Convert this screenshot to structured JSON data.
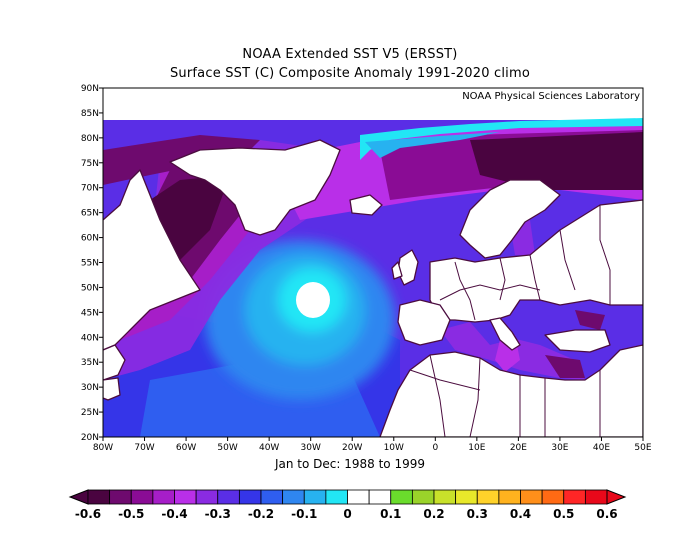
{
  "header": {
    "title": "NOAA Extended SST V5 (ERSST)",
    "subtitle": "Surface SST (C) Composite Anomaly 1991-2020 climo",
    "credit": "NOAA Physical Sciences Laboratory"
  },
  "map": {
    "lat_ticks": [
      "90N",
      "85N",
      "80N",
      "75N",
      "70N",
      "65N",
      "60N",
      "55N",
      "50N",
      "45N",
      "40N",
      "35N",
      "30N",
      "25N",
      "20N"
    ],
    "lon_ticks": [
      "80W",
      "70W",
      "60W",
      "50W",
      "40W",
      "30W",
      "20W",
      "10W",
      "0",
      "10E",
      "20E",
      "30E",
      "40E",
      "50E"
    ],
    "lat_range": [
      20,
      90
    ],
    "lon_range": [
      -80,
      50
    ],
    "period_label": "Jan to Dec: 1988 to 1999",
    "land_color": "#ffffff",
    "coast_color": "#4b0d3f"
  },
  "colorbar": {
    "labels": [
      "-0.6",
      "-0.5",
      "-0.4",
      "-0.3",
      "-0.2",
      "-0.1",
      "0",
      "0.1",
      "0.2",
      "0.3",
      "0.4",
      "0.5",
      "0.6"
    ],
    "colors": [
      "#4a0440",
      "#6e0a6e",
      "#8a0c95",
      "#a61ec8",
      "#b92fe8",
      "#8a2be2",
      "#5a2ee6",
      "#3535e8",
      "#2f5ef0",
      "#2f86f0",
      "#27b2f0",
      "#22e6f5",
      "#ffffff",
      "#ffffff",
      "#6adc2c",
      "#9ad32a",
      "#c8e12a",
      "#e8e82a",
      "#ffd22a",
      "#ffb21e",
      "#ff8f1a",
      "#ff6a14",
      "#ff2626",
      "#e8081a"
    ]
  }
}
